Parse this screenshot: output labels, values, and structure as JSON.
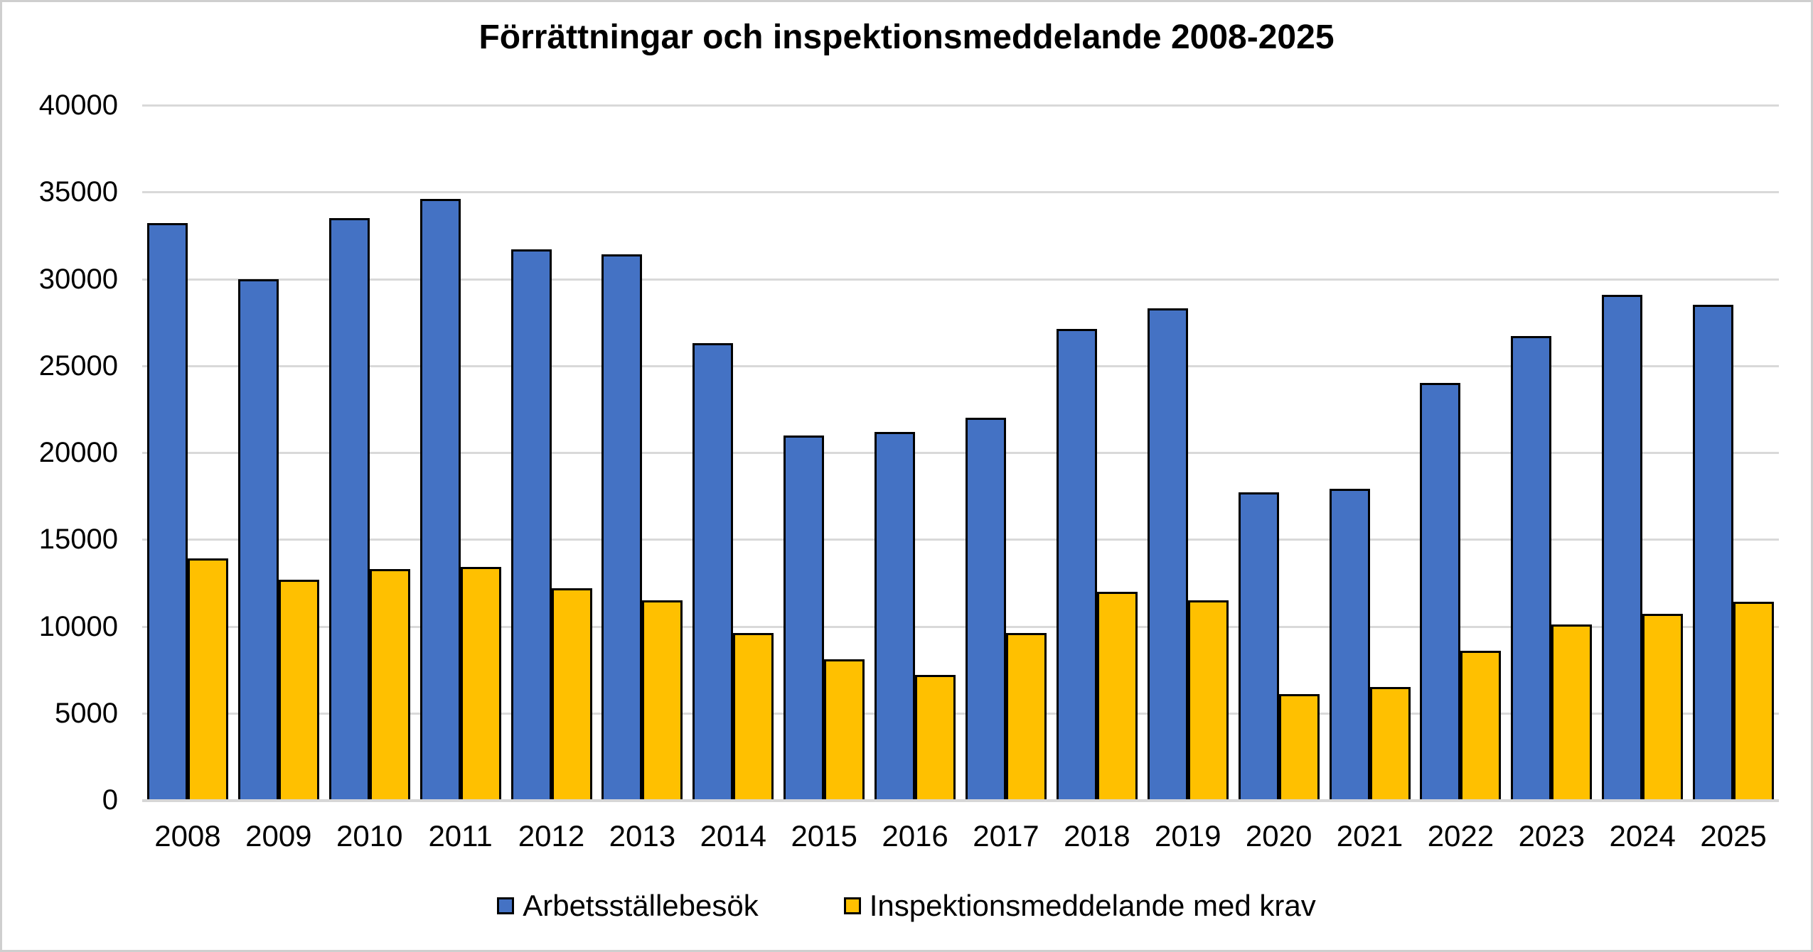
{
  "title": "Förrättningar och inspektionsmeddelande 2008-2025",
  "colors": {
    "series_blue": "#4472C4",
    "series_yellow": "#FFC000",
    "bar_border": "#000000",
    "gridline": "#D9D9D9",
    "axis_line": "#D6D6D6",
    "background": "#FFFFFF",
    "frame_border": "#CFCFCF",
    "text": "#000000"
  },
  "chart_data": {
    "type": "bar",
    "title": "Förrättningar och inspektionsmeddelande 2008-2025",
    "xlabel": "",
    "ylabel": "",
    "categories": [
      "2008",
      "2009",
      "2010",
      "2011",
      "2012",
      "2013",
      "2014",
      "2015",
      "2016",
      "2017",
      "2018",
      "2019",
      "2020",
      "2021",
      "2022",
      "2023",
      "2024",
      "2025"
    ],
    "series": [
      {
        "name": "Arbetsställebesök",
        "color": "#4472C4",
        "values": [
          33200,
          30000,
          33500,
          34600,
          31700,
          31400,
          26300,
          21000,
          21200,
          22000,
          27100,
          28300,
          17700,
          17900,
          24000,
          26700,
          29100,
          28500
        ]
      },
      {
        "name": "Inspektionsmeddelande med krav",
        "color": "#FFC000",
        "values": [
          13900,
          12700,
          13300,
          13400,
          12200,
          11500,
          9600,
          8100,
          7200,
          9600,
          12000,
          11500,
          6100,
          6500,
          8600,
          10100,
          10700,
          11400
        ]
      }
    ],
    "ylim": [
      0,
      40000
    ],
    "ytick_step": 5000,
    "ytick_labels": [
      "0",
      "5000",
      "10000",
      "15000",
      "20000",
      "25000",
      "30000",
      "35000",
      "40000"
    ],
    "grid": true,
    "legend_position": "bottom"
  },
  "legend": {
    "items": [
      {
        "label": "Arbetsställebesök",
        "color": "#4472C4"
      },
      {
        "label": "Inspektionsmeddelande med krav",
        "color": "#FFC000"
      }
    ]
  }
}
